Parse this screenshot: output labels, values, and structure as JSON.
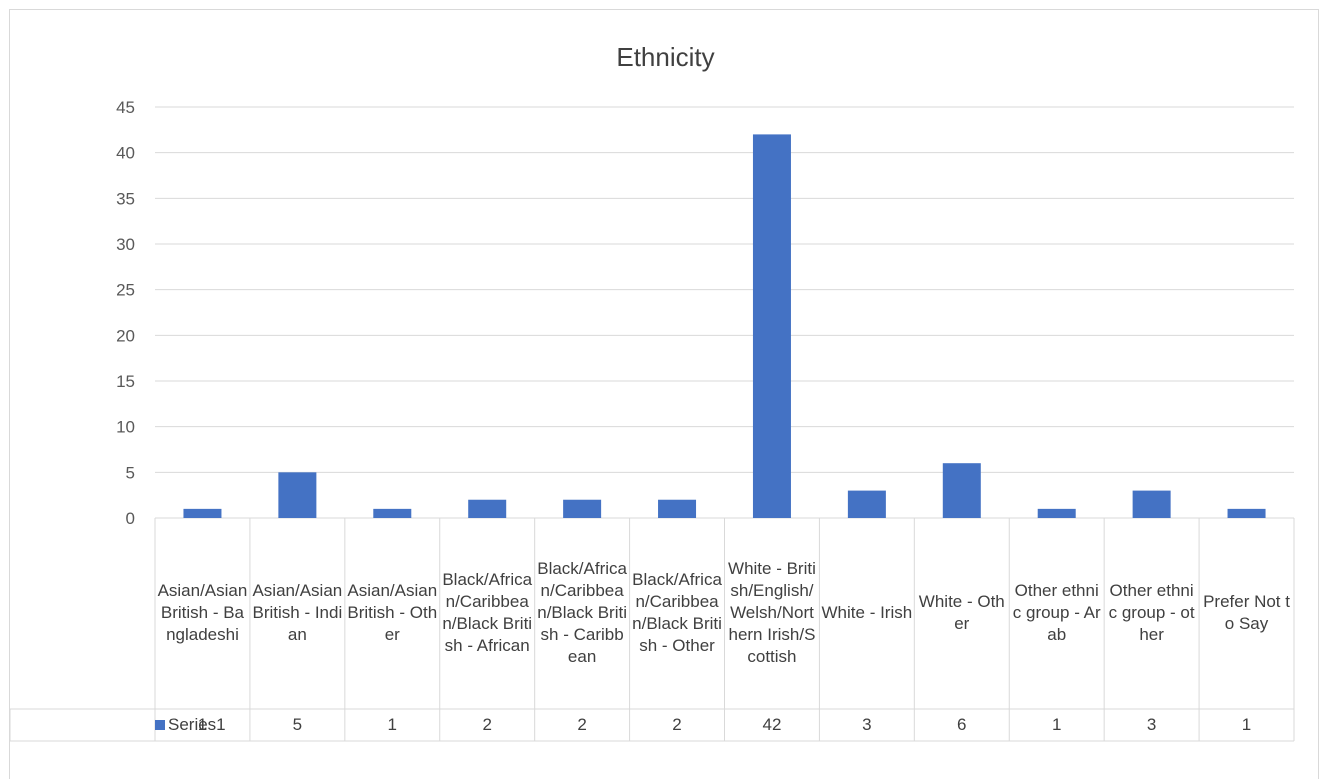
{
  "chart_data": {
    "type": "bar",
    "title": "Ethnicity",
    "categories": [
      "Asian/Asian British - Bangladeshi",
      "Asian/Asian British - Indian",
      "Asian/Asian British - Other",
      "Black/African/Caribbean/Black British - African",
      "Black/African/Caribbean/Black British - Caribbean",
      "Black/African/Caribbean/Black British - Other",
      "White - British/English/Welsh/Northern Irish/Scottish",
      "White - Irish",
      "White - Other",
      "Other ethnic group - Arab",
      "Other ethnic group - other",
      "Prefer Not to Say"
    ],
    "series": [
      {
        "name": "Series1",
        "values": [
          1,
          5,
          1,
          2,
          2,
          2,
          42,
          3,
          6,
          1,
          3,
          1
        ]
      }
    ],
    "ylim": [
      0,
      45
    ],
    "yticks": [
      "0",
      "5",
      "10",
      "15",
      "20",
      "25",
      "30",
      "35",
      "40",
      "45"
    ],
    "grid": true,
    "data_table": true,
    "color": "#4472c4"
  }
}
